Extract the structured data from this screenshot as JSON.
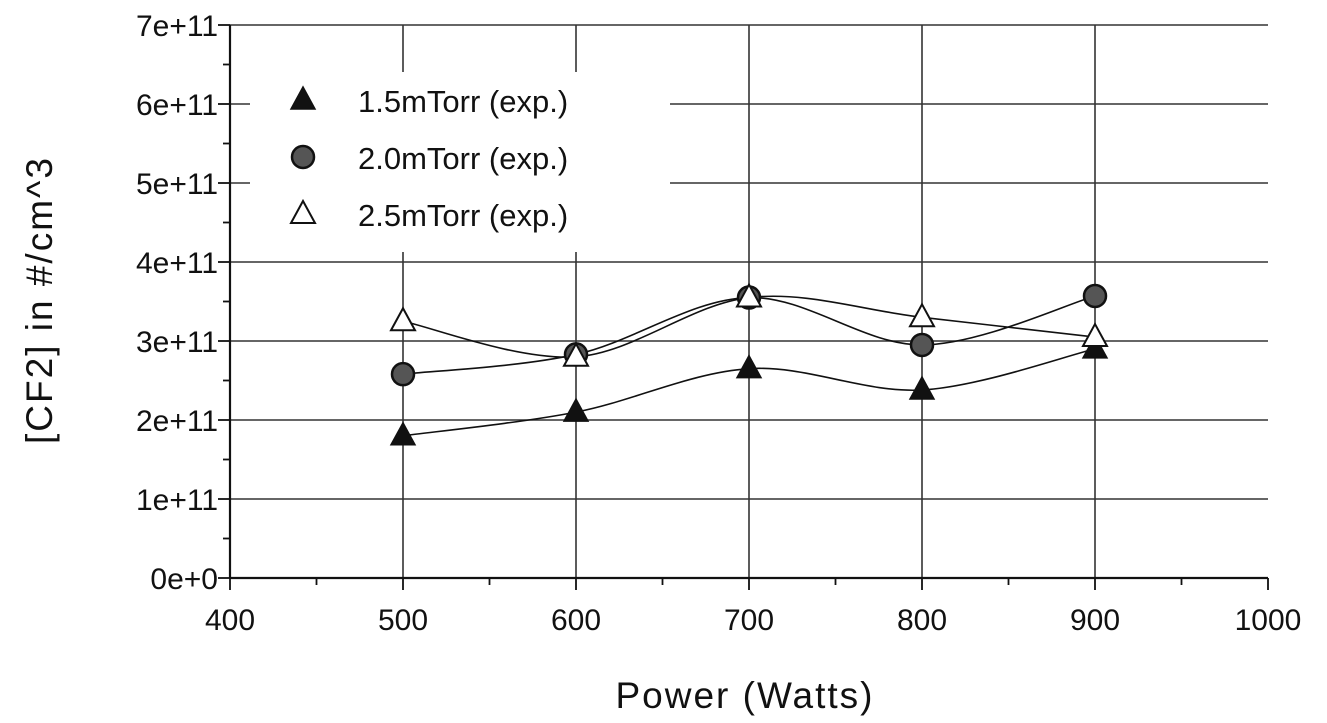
{
  "chart_data": {
    "type": "scatter",
    "xlabel": "Power   (Watts)",
    "ylabel": "[CF2]  in  #/cm^3",
    "xlim": [
      400,
      1000
    ],
    "ylim": [
      0,
      700000000000
    ],
    "x_ticks": [
      "400",
      "500",
      "600",
      "700",
      "800",
      "900",
      "1000"
    ],
    "y_ticks": [
      "0e+0",
      "1e+11",
      "2e+11",
      "3e+11",
      "4e+11",
      "5e+11",
      "6e+11",
      "7e+11"
    ],
    "grid": true,
    "legend_position": "top-left",
    "x": [
      500,
      600,
      700,
      800,
      900
    ],
    "series": [
      {
        "name": "1.5mTorr (exp.)",
        "marker": "filled-triangle",
        "values": [
          180000000000,
          210000000000,
          265000000000,
          238000000000,
          290000000000
        ]
      },
      {
        "name": "2.0mTorr (exp.)",
        "marker": "filled-circle",
        "values": [
          258000000000,
          283000000000,
          355000000000,
          295000000000,
          357000000000
        ]
      },
      {
        "name": "2.5mTorr (exp.)",
        "marker": "open-triangle",
        "values": [
          325000000000,
          280000000000,
          355000000000,
          330000000000,
          305000000000
        ]
      }
    ]
  },
  "colors": {
    "ink": "#111111",
    "grid": "#333333",
    "filled_marker": "#111111",
    "circle_fill": "#555555"
  }
}
